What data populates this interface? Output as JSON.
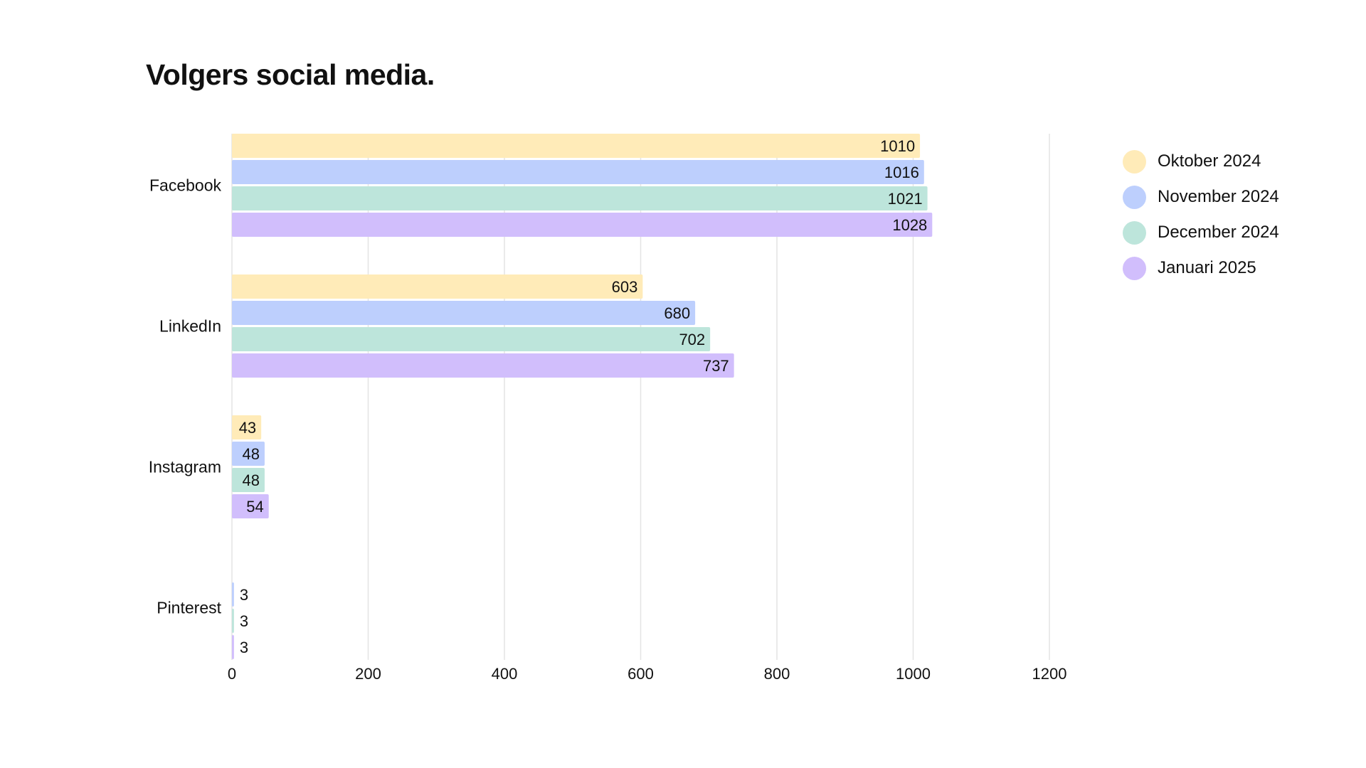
{
  "chart_data": {
    "type": "bar",
    "orientation": "horizontal",
    "title": "Volgers social media.",
    "xlabel": "",
    "ylabel": "",
    "categories": [
      "Facebook",
      "LinkedIn",
      "Instagram",
      "Pinterest"
    ],
    "series": [
      {
        "name": "Oktober 2024",
        "color": "#FFEBB8",
        "values": [
          1010,
          603,
          43,
          0
        ]
      },
      {
        "name": "November 2024",
        "color": "#BDCFFD",
        "values": [
          1016,
          680,
          48,
          3
        ]
      },
      {
        "name": "December 2024",
        "color": "#BDE5DB",
        "values": [
          1021,
          702,
          48,
          3
        ]
      },
      {
        "name": "Januari 2025",
        "color": "#D1BEFC",
        "values": [
          1028,
          737,
          54,
          3
        ]
      }
    ],
    "xlim": [
      0,
      1200
    ],
    "xticks": [
      0,
      200,
      400,
      600,
      800,
      1000,
      1200
    ],
    "grid": true,
    "legend_position": "right"
  }
}
